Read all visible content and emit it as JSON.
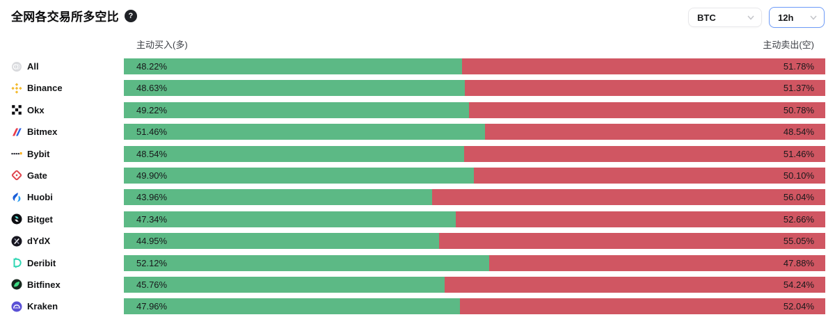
{
  "header": {
    "title": "全网各交易所多空比",
    "help_icon": "question-mark",
    "coin_select": {
      "value": "BTC"
    },
    "interval_select": {
      "value": "12h"
    }
  },
  "columns": {
    "long_header": "主动买入(多)",
    "short_header": "主动卖出(空)"
  },
  "colors": {
    "long_green": "#5cb985",
    "short_red": "#d05662",
    "interval_active_border": "#6d9bf8"
  },
  "rows": [
    {
      "name": "All",
      "icon": "all-icon",
      "long": "48.22%",
      "short": "51.78%"
    },
    {
      "name": "Binance",
      "icon": "binance-icon",
      "long": "48.63%",
      "short": "51.37%"
    },
    {
      "name": "Okx",
      "icon": "okx-icon",
      "long": "49.22%",
      "short": "50.78%"
    },
    {
      "name": "Bitmex",
      "icon": "bitmex-icon",
      "long": "51.46%",
      "short": "48.54%"
    },
    {
      "name": "Bybit",
      "icon": "bybit-icon",
      "long": "48.54%",
      "short": "51.46%"
    },
    {
      "name": "Gate",
      "icon": "gate-icon",
      "long": "49.90%",
      "short": "50.10%"
    },
    {
      "name": "Huobi",
      "icon": "huobi-icon",
      "long": "43.96%",
      "short": "56.04%"
    },
    {
      "name": "Bitget",
      "icon": "bitget-icon",
      "long": "47.34%",
      "short": "52.66%"
    },
    {
      "name": "dYdX",
      "icon": "dydx-icon",
      "long": "44.95%",
      "short": "55.05%"
    },
    {
      "name": "Deribit",
      "icon": "deribit-icon",
      "long": "52.12%",
      "short": "47.88%"
    },
    {
      "name": "Bitfinex",
      "icon": "bitfinex-icon",
      "long": "45.76%",
      "short": "54.24%"
    },
    {
      "name": "Kraken",
      "icon": "kraken-icon",
      "long": "47.96%",
      "short": "52.04%"
    }
  ],
  "chart_data": {
    "type": "bar",
    "stacked": true,
    "orientation": "horizontal",
    "title": "全网各交易所多空比",
    "unit": "%",
    "categories": [
      "All",
      "Binance",
      "Okx",
      "Bitmex",
      "Bybit",
      "Gate",
      "Huobi",
      "Bitget",
      "dYdX",
      "Deribit",
      "Bitfinex",
      "Kraken"
    ],
    "series": [
      {
        "name": "主动买入(多)",
        "color": "#5cb985",
        "values": [
          48.22,
          48.63,
          49.22,
          51.46,
          48.54,
          49.9,
          43.96,
          47.34,
          44.95,
          52.12,
          45.76,
          47.96
        ]
      },
      {
        "name": "主动卖出(空)",
        "color": "#d05662",
        "values": [
          51.78,
          51.37,
          50.78,
          48.54,
          51.46,
          50.1,
          56.04,
          52.66,
          55.05,
          47.88,
          54.24,
          52.04
        ]
      }
    ],
    "xlim": [
      0,
      100
    ],
    "grid": false,
    "legend_position": "top-as-column-headers"
  }
}
